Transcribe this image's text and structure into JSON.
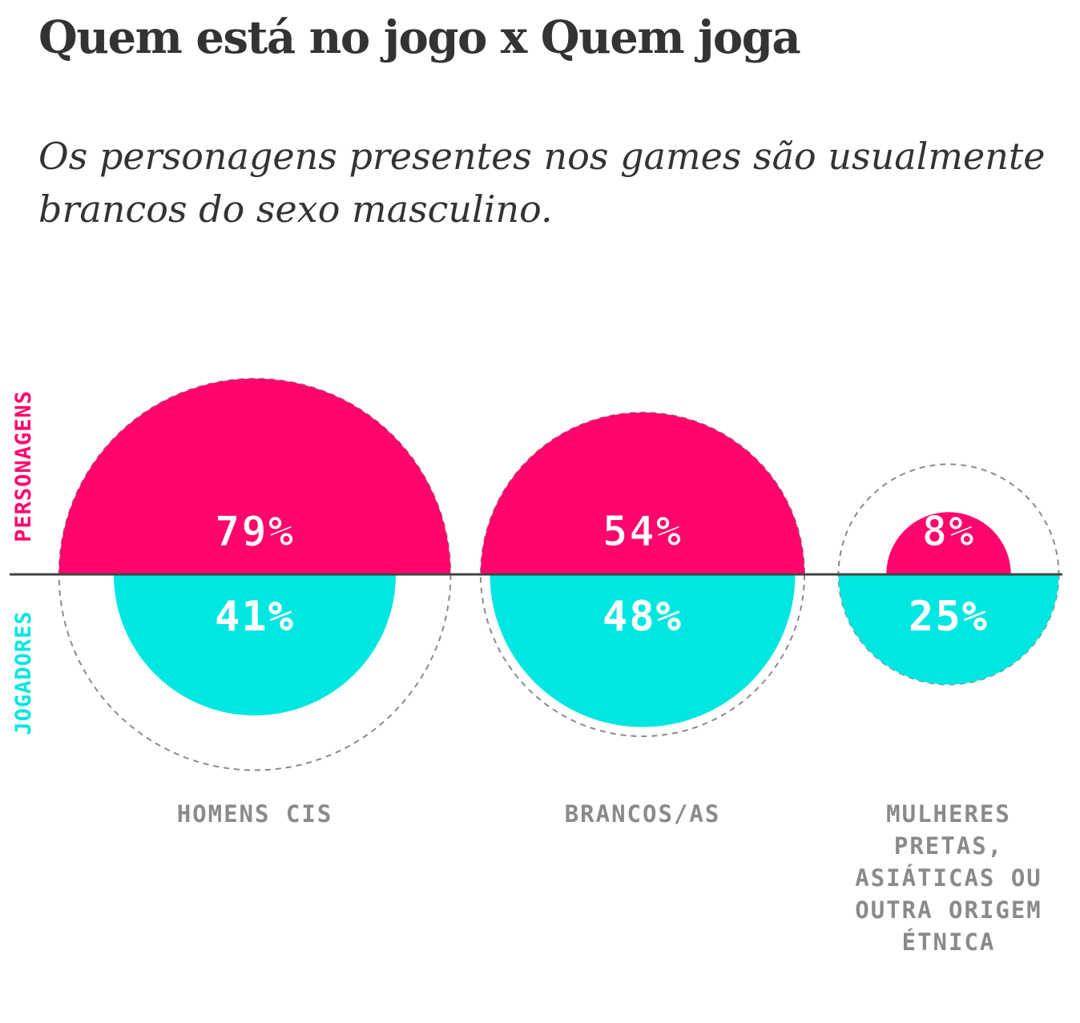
{
  "title": "Quem está no jogo x Quem joga",
  "subtitle": "Os personagens presentes nos games são usualmente brancos do sexo masculino.",
  "colors": {
    "personagens": "#ff066c",
    "jogadores": "#00e6e1",
    "text": "#333333",
    "category_text": "#8a8a8a",
    "baseline": "#444444",
    "dashed_reference": "#8a8a8a",
    "value_text": "#ffffff"
  },
  "chart_data": {
    "type": "semicircle-comparison",
    "title": "Quem está no jogo x Quem joga",
    "subtitle": "Os personagens presentes nos games são usualmente brancos do sexo masculino.",
    "series": [
      {
        "name": "PERSONAGENS",
        "values": [
          79,
          54,
          8
        ],
        "labels": [
          "79%",
          "54%",
          "8%"
        ],
        "position": "above baseline"
      },
      {
        "name": "JOGADORES",
        "values": [
          41,
          48,
          25
        ],
        "labels": [
          "41%",
          "48%",
          "25%"
        ],
        "position": "below baseline"
      }
    ],
    "categories": [
      [
        "HOMENS CIS"
      ],
      [
        "BRANCOS/AS"
      ],
      [
        "MULHERES",
        "PRETAS,",
        "ASIÁTICAS OU",
        "OUTRA ORIGEM",
        "ÉTNICA"
      ]
    ],
    "unit": "%",
    "reference_outline": "dashed circle mirroring the larger half in each pair"
  }
}
